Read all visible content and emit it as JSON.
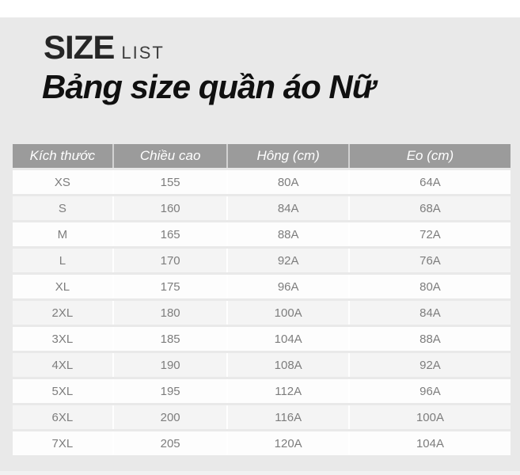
{
  "header": {
    "brand_main": "SIZE",
    "brand_sub": "LIST",
    "title": "Bảng size quần áo Nữ"
  },
  "table": {
    "columns": [
      "Kích thước",
      "Chiều cao",
      "Hông (cm)",
      "Eo (cm)"
    ],
    "rows": [
      [
        "XS",
        "155",
        "80A",
        "64A"
      ],
      [
        "S",
        "160",
        "84A",
        "68A"
      ],
      [
        "M",
        "165",
        "88A",
        "72A"
      ],
      [
        "L",
        "170",
        "92A",
        "76A"
      ],
      [
        "XL",
        "175",
        "96A",
        "80A"
      ],
      [
        "2XL",
        "180",
        "100A",
        "84A"
      ],
      [
        "3XL",
        "185",
        "104A",
        "88A"
      ],
      [
        "4XL",
        "190",
        "108A",
        "92A"
      ],
      [
        "5XL",
        "195",
        "112A",
        "96A"
      ],
      [
        "6XL",
        "200",
        "116A",
        "100A"
      ],
      [
        "7XL",
        "205",
        "120A",
        "104A"
      ]
    ]
  },
  "colors": {
    "page_background": "#e9e9e9",
    "top_band": "#ffffff",
    "table_header_bg": "#9b9b9b",
    "table_header_text": "#ffffff",
    "row_odd_bg": "#fdfdfd",
    "row_even_bg": "#f4f4f4",
    "cell_text": "#7d7d7d",
    "brand_text": "#262626",
    "title_text": "#101010"
  }
}
